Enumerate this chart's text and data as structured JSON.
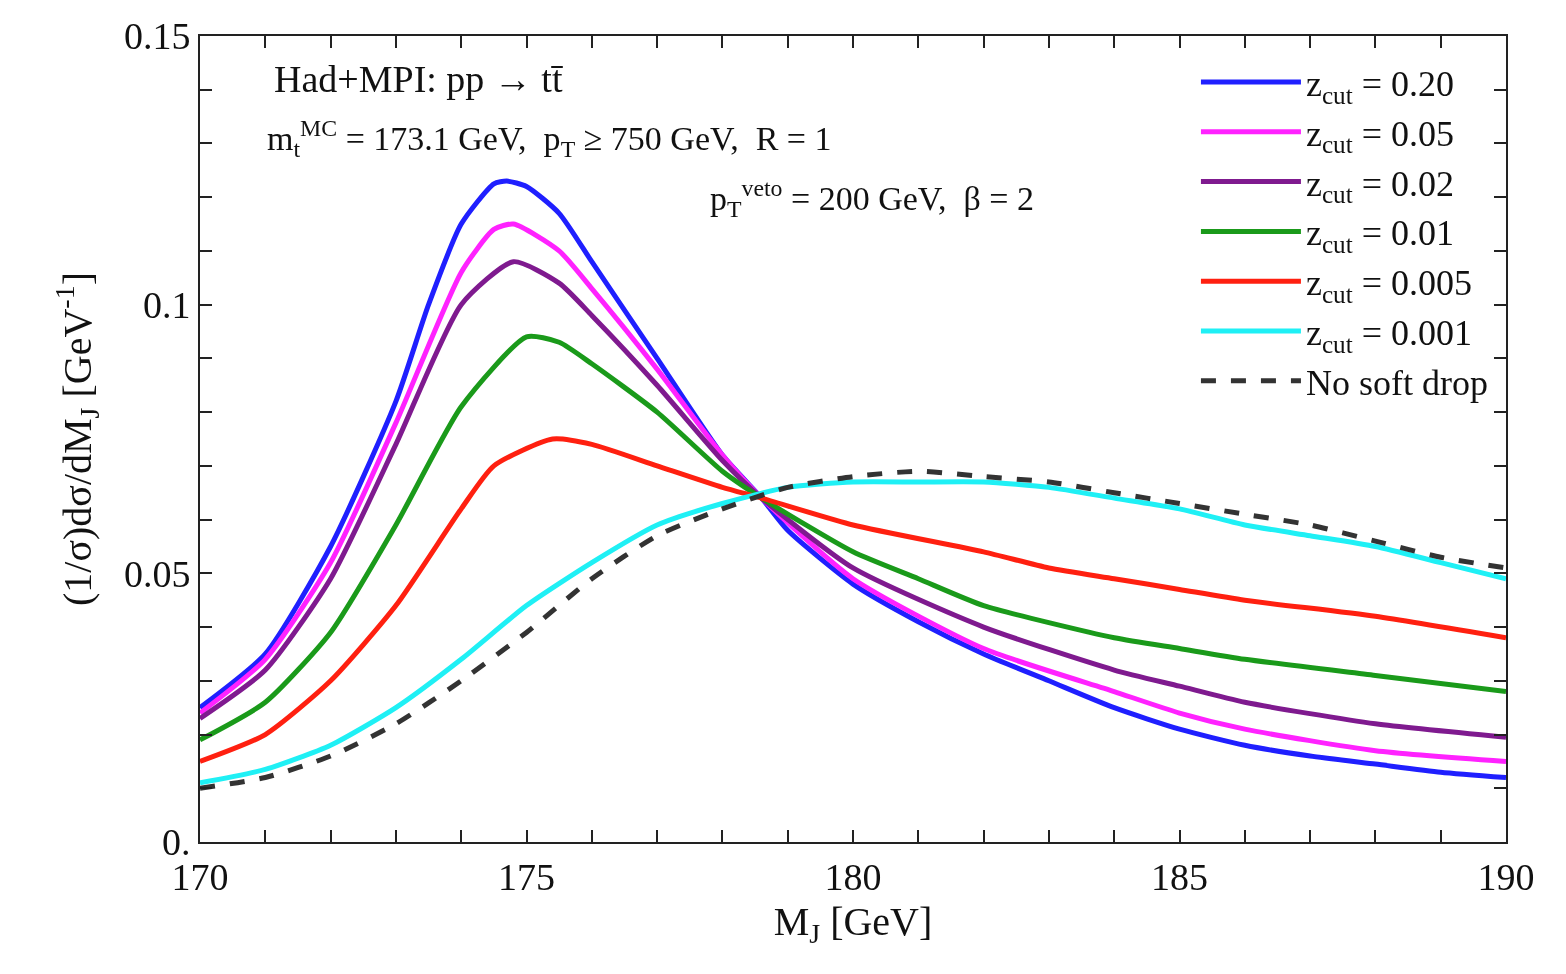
{
  "chart_data": {
    "type": "line",
    "xlabel": "M$_{J}$ [GeV]",
    "ylabel": "(1/σ)dσ/dM$_{J}$ [GeV$^{-1}$]",
    "annotations": [
      "Had+MPI: pp → tt̄",
      "m$_{t}$$^{MC}$ = 173.1 GeV,  p$_{T}$ ≥ 750 GeV,  R = 1",
      "p$_{T}$$^{veto}$ = 200 GeV,  β = 2"
    ],
    "xlim": [
      170,
      190
    ],
    "ylim": [
      0,
      0.15
    ],
    "xticks": [
      170,
      {
        "value": 171,
        "label": null
      },
      {
        "value": 172,
        "label": null
      },
      {
        "value": 173,
        "label": null
      },
      {
        "value": 174,
        "label": null
      },
      175,
      {
        "value": 176,
        "label": null
      },
      {
        "value": 177,
        "label": null
      },
      {
        "value": 178,
        "label": null
      },
      {
        "value": 179,
        "label": null
      },
      180,
      {
        "value": 181,
        "label": null
      },
      {
        "value": 182,
        "label": null
      },
      {
        "value": 183,
        "label": null
      },
      {
        "value": 184,
        "label": null
      },
      185,
      {
        "value": 186,
        "label": null
      },
      {
        "value": 187,
        "label": null
      },
      {
        "value": 188,
        "label": null
      },
      {
        "value": 189,
        "label": null
      },
      190
    ],
    "yticks": [
      {
        "value": 0,
        "label": "0."
      },
      {
        "value": 0.01,
        "label": null
      },
      {
        "value": 0.02,
        "label": null
      },
      {
        "value": 0.03,
        "label": null
      },
      {
        "value": 0.04,
        "label": null
      },
      0.05,
      {
        "value": 0.06,
        "label": null
      },
      {
        "value": 0.07,
        "label": null
      },
      {
        "value": 0.08,
        "label": null
      },
      {
        "value": 0.09,
        "label": null
      },
      0.1,
      {
        "value": 0.11,
        "label": null
      },
      {
        "value": 0.12,
        "label": null
      },
      {
        "value": 0.13,
        "label": null
      },
      {
        "value": 0.14,
        "label": null
      },
      0.15
    ],
    "grid": false,
    "legend": "top right",
    "line_style": "solid",
    "series": [
      {
        "name": "z$_{cut}$ = 0.20",
        "color": "#1f1fff",
        "x": [
          170,
          171,
          172,
          173,
          173.5,
          174,
          174.5,
          174.7,
          175,
          175.5,
          176,
          177,
          178,
          178.6,
          179,
          180,
          181,
          182,
          183,
          184,
          185,
          186,
          187,
          188,
          189,
          190
        ],
        "values": [
          0.025,
          0.035,
          0.055,
          0.082,
          0.1,
          0.115,
          0.1225,
          0.123,
          0.122,
          0.117,
          0.108,
          0.09,
          0.072,
          0.064,
          0.058,
          0.048,
          0.041,
          0.035,
          0.03,
          0.025,
          0.021,
          0.018,
          0.016,
          0.0145,
          0.013,
          0.012
        ]
      },
      {
        "name": "z$_{cut}$ = 0.05",
        "color": "#ff22ff",
        "x": [
          170,
          171,
          172,
          173,
          174,
          174.5,
          174.8,
          175.5,
          176,
          177,
          178,
          178.6,
          180,
          182,
          184,
          185,
          186,
          188,
          190
        ],
        "values": [
          0.024,
          0.034,
          0.052,
          0.078,
          0.106,
          0.114,
          0.115,
          0.11,
          0.103,
          0.088,
          0.072,
          0.064,
          0.049,
          0.036,
          0.028,
          0.024,
          0.021,
          0.017,
          0.015
        ]
      },
      {
        "name": "z$_{cut}$ = 0.02",
        "color": "#7f1a8f",
        "x": [
          170,
          171,
          172,
          173,
          174,
          174.8,
          175.5,
          176,
          177,
          178,
          178.6,
          180,
          182,
          184,
          185,
          186,
          188,
          190
        ],
        "values": [
          0.023,
          0.032,
          0.049,
          0.074,
          0.1,
          0.108,
          0.104,
          0.098,
          0.085,
          0.071,
          0.064,
          0.051,
          0.04,
          0.032,
          0.029,
          0.026,
          0.022,
          0.0195
        ]
      },
      {
        "name": "z$_{cut}$ = 0.01",
        "color": "#1a9a1a",
        "x": [
          170,
          171,
          172,
          173,
          174,
          175,
          175.5,
          176,
          177,
          178,
          178.6,
          180,
          181,
          182,
          184,
          185,
          186,
          188,
          190
        ],
        "values": [
          0.019,
          0.026,
          0.039,
          0.059,
          0.081,
          0.094,
          0.093,
          0.089,
          0.08,
          0.069,
          0.064,
          0.054,
          0.049,
          0.044,
          0.038,
          0.036,
          0.034,
          0.031,
          0.028
        ]
      },
      {
        "name": "z$_{cut}$ = 0.005",
        "color": "#ff2010",
        "x": [
          170,
          171,
          172,
          173,
          174,
          174.5,
          175.4,
          176,
          177,
          178,
          178.6,
          180,
          182,
          183,
          184,
          185,
          186,
          188,
          190
        ],
        "values": [
          0.015,
          0.02,
          0.03,
          0.044,
          0.062,
          0.07,
          0.075,
          0.074,
          0.07,
          0.066,
          0.064,
          0.059,
          0.054,
          0.051,
          0.049,
          0.047,
          0.045,
          0.042,
          0.038
        ]
      },
      {
        "name": "z$_{cut}$ = 0.001",
        "color": "#1ff0f5",
        "x": [
          170,
          171,
          172,
          173,
          174,
          175,
          176,
          177,
          178,
          179,
          180,
          181,
          182,
          183,
          184,
          185,
          186,
          187,
          188,
          189,
          190
        ],
        "values": [
          0.011,
          0.0135,
          0.018,
          0.025,
          0.034,
          0.044,
          0.052,
          0.059,
          0.063,
          0.066,
          0.067,
          0.067,
          0.067,
          0.066,
          0.064,
          0.062,
          0.059,
          0.057,
          0.055,
          0.052,
          0.049
        ]
      },
      {
        "name": "No soft drop",
        "color": "#333333",
        "line_style": "dashed",
        "x": [
          170,
          171,
          172,
          173,
          174,
          175,
          176,
          177,
          178,
          179,
          180,
          181,
          182,
          183,
          184,
          185,
          186,
          187,
          188,
          189,
          190
        ],
        "values": [
          0.01,
          0.012,
          0.016,
          0.022,
          0.03,
          0.039,
          0.049,
          0.057,
          0.062,
          0.066,
          0.068,
          0.069,
          0.068,
          0.067,
          0.065,
          0.063,
          0.061,
          0.059,
          0.056,
          0.053,
          0.051
        ]
      }
    ]
  }
}
